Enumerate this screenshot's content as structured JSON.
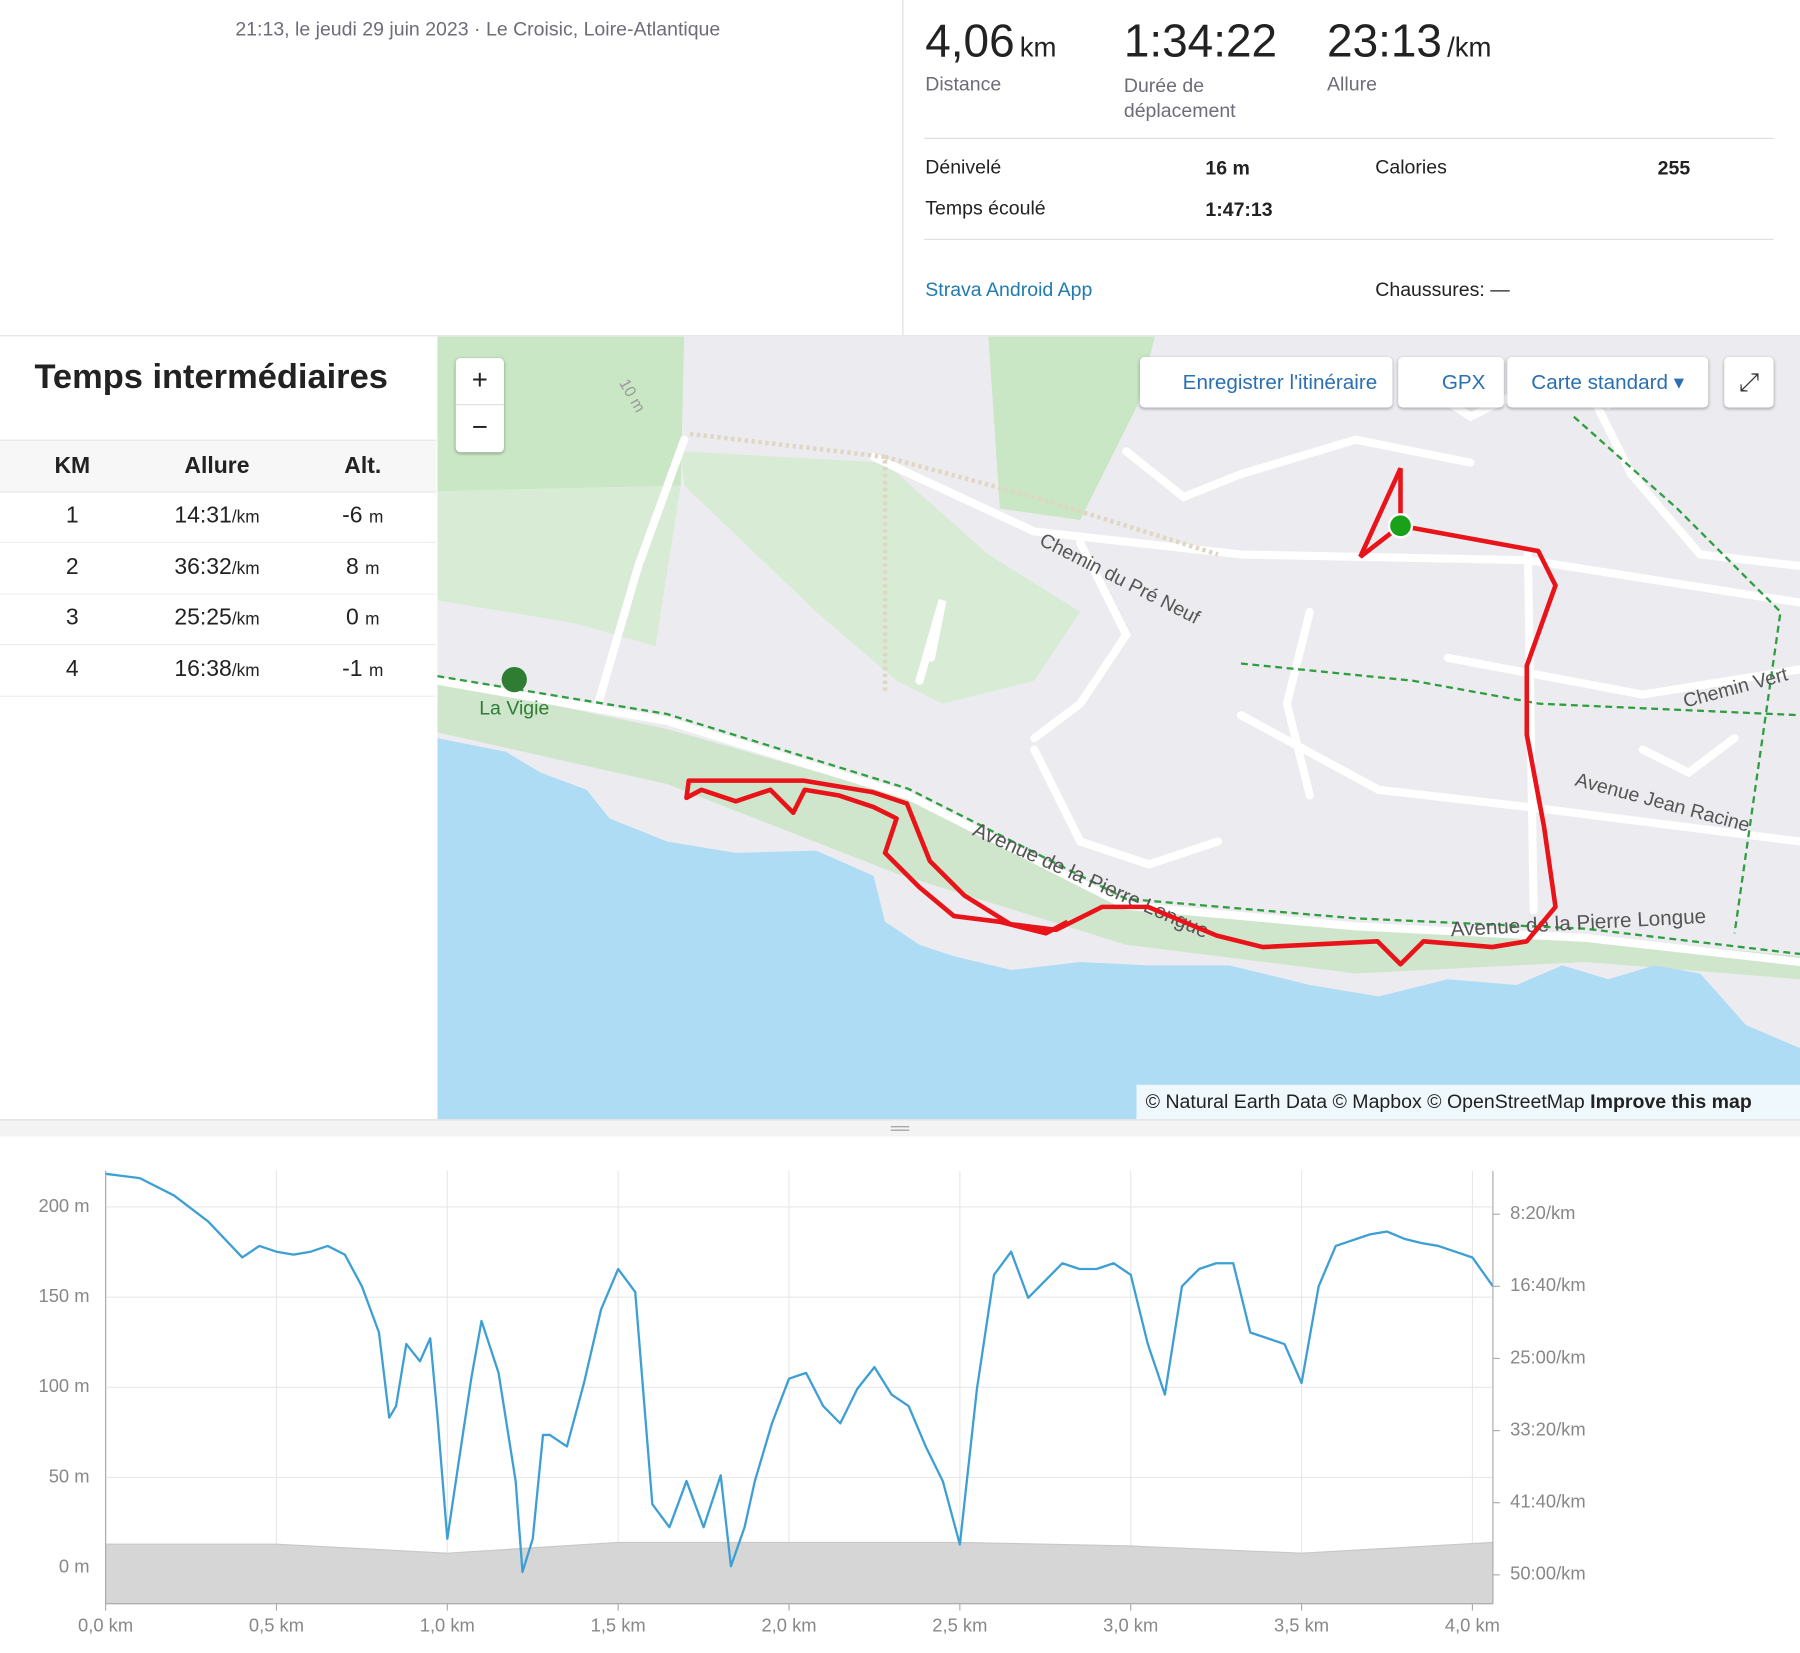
{
  "header": {
    "datetime": "21:13, le jeudi 29 juin 2023 · Le Croisic, Loire-Atlantique"
  },
  "stats": [
    {
      "value": "4,06",
      "unit": "km",
      "label": "Distance"
    },
    {
      "value": "1:34:22",
      "label": "Durée de déplacement"
    },
    {
      "value": "23:13",
      "unit": "/km",
      "label": "Allure"
    }
  ],
  "details": {
    "elevation_label": "Dénivelé",
    "elevation": "16 m",
    "elapsed_label": "Temps écoulé",
    "elapsed": "1:47:13",
    "calories_label": "Calories",
    "calories": "255",
    "device": "Strava Android App",
    "shoes": "Chaussures: —"
  },
  "splits": {
    "title": "Temps intermédiaires",
    "headers": [
      "KM",
      "Allure",
      "Alt."
    ],
    "rows": [
      [
        "1",
        "14:31",
        "/km",
        "-6",
        "m"
      ],
      [
        "2",
        "36:32",
        "/km",
        "8",
        "m"
      ],
      [
        "3",
        "25:25",
        "/km",
        "0",
        "m"
      ],
      [
        "4",
        "16:38",
        "/km",
        "-1",
        "m"
      ]
    ]
  },
  "map": {
    "zoom_in": "+",
    "zoom_out": "−",
    "save_route": "Enregistrer l'itinéraire",
    "gpx": "GPX",
    "style": "Carte standard",
    "labels": {
      "pre_neuf": "Chemin du Pré Neuf",
      "vigie": "La Vigie",
      "pierre_longue_1": "Avenue de la Pierre Longue",
      "pierre_longue_2": "Avenue de la Pierre Longue",
      "chemin_vert": "Chemin Vert",
      "jean_racine": "Avenue Jean Racine",
      "contour": "10 m"
    },
    "attribution": "© Natural Earth Data © Mapbox © OpenStreetMap",
    "improve": "Improve this map"
  },
  "chart_data": {
    "type": "line",
    "xlim": [
      0,
      4.06
    ],
    "xticks": [
      {
        "value": 0,
        "label": "0,0 km"
      },
      {
        "value": 0.5,
        "label": "0,5 km"
      },
      {
        "value": 1,
        "label": "1,0 km"
      },
      {
        "value": 1.5,
        "label": "1,5 km"
      },
      {
        "value": 2,
        "label": "2,0 km"
      },
      {
        "value": 2.5,
        "label": "2,5 km"
      },
      {
        "value": 3,
        "label": "3,0 km"
      },
      {
        "value": 3.5,
        "label": "3,5 km"
      },
      {
        "value": 4,
        "label": "4,0 km"
      }
    ],
    "ylim": [
      -20,
      220
    ],
    "yticks": [
      {
        "value": 0,
        "label": "0 m"
      },
      {
        "value": 50,
        "label": "50 m"
      },
      {
        "value": 100,
        "label": "100 m"
      },
      {
        "value": 150,
        "label": "150 m"
      },
      {
        "value": 200,
        "label": "200 m"
      }
    ],
    "y2lim": [
      3200,
      200
    ],
    "y2ticks": [
      {
        "value": 500,
        "label": "8:20/km"
      },
      {
        "value": 1000,
        "label": "16:40/km"
      },
      {
        "value": 1500,
        "label": "25:00/km"
      },
      {
        "value": 2000,
        "label": "33:20/km"
      },
      {
        "value": 2500,
        "label": "41:40/km"
      },
      {
        "value": 3000,
        "label": "50:00/km"
      }
    ],
    "grid": true,
    "series": [
      {
        "style": "area",
        "color": "#d6d6d6",
        "x": [
          0,
          0.5,
          1,
          1.5,
          2,
          2.5,
          3,
          3.5,
          4.06
        ],
        "values": [
          13,
          13,
          8,
          14,
          14,
          14,
          12,
          8,
          14
        ]
      },
      {
        "style": "line",
        "color": "#3d9fd3",
        "axis": "y2",
        "x": [
          0,
          0.1,
          0.2,
          0.3,
          0.4,
          0.45,
          0.5,
          0.55,
          0.6,
          0.65,
          0.7,
          0.75,
          0.8,
          0.83,
          0.85,
          0.88,
          0.92,
          0.95,
          0.97,
          1,
          1.03,
          1.07,
          1.1,
          1.15,
          1.2,
          1.22,
          1.25,
          1.28,
          1.3,
          1.35,
          1.4,
          1.45,
          1.5,
          1.55,
          1.6,
          1.65,
          1.7,
          1.75,
          1.8,
          1.83,
          1.87,
          1.9,
          1.95,
          2,
          2.05,
          2.1,
          2.15,
          2.2,
          2.25,
          2.3,
          2.35,
          2.4,
          2.45,
          2.5,
          2.55,
          2.6,
          2.65,
          2.7,
          2.75,
          2.8,
          2.85,
          2.9,
          2.95,
          3,
          3.05,
          3.1,
          3.15,
          3.2,
          3.25,
          3.3,
          3.35,
          3.4,
          3.45,
          3.5,
          3.55,
          3.6,
          3.7,
          3.75,
          3.8,
          3.85,
          3.9,
          3.95,
          4,
          4.06
        ],
        "values": [
          220,
          250,
          370,
          550,
          800,
          720,
          760,
          780,
          760,
          720,
          780,
          1000,
          1320,
          1910,
          1830,
          1400,
          1520,
          1360,
          1870,
          2750,
          2270,
          1640,
          1240,
          1600,
          2350,
          2980,
          2750,
          2030,
          2030,
          2110,
          1670,
          1160,
          880,
          1040,
          2510,
          2670,
          2350,
          2670,
          2310,
          2940,
          2670,
          2350,
          1950,
          1640,
          1600,
          1830,
          1950,
          1710,
          1560,
          1750,
          1830,
          2110,
          2350,
          2790,
          1710,
          920,
          760,
          1080,
          960,
          840,
          880,
          880,
          840,
          920,
          1400,
          1750,
          1000,
          880,
          840,
          840,
          1320,
          1360,
          1400,
          1670,
          1000,
          720,
          640,
          620,
          670,
          700,
          720,
          760,
          800,
          1000
        ]
      }
    ]
  }
}
